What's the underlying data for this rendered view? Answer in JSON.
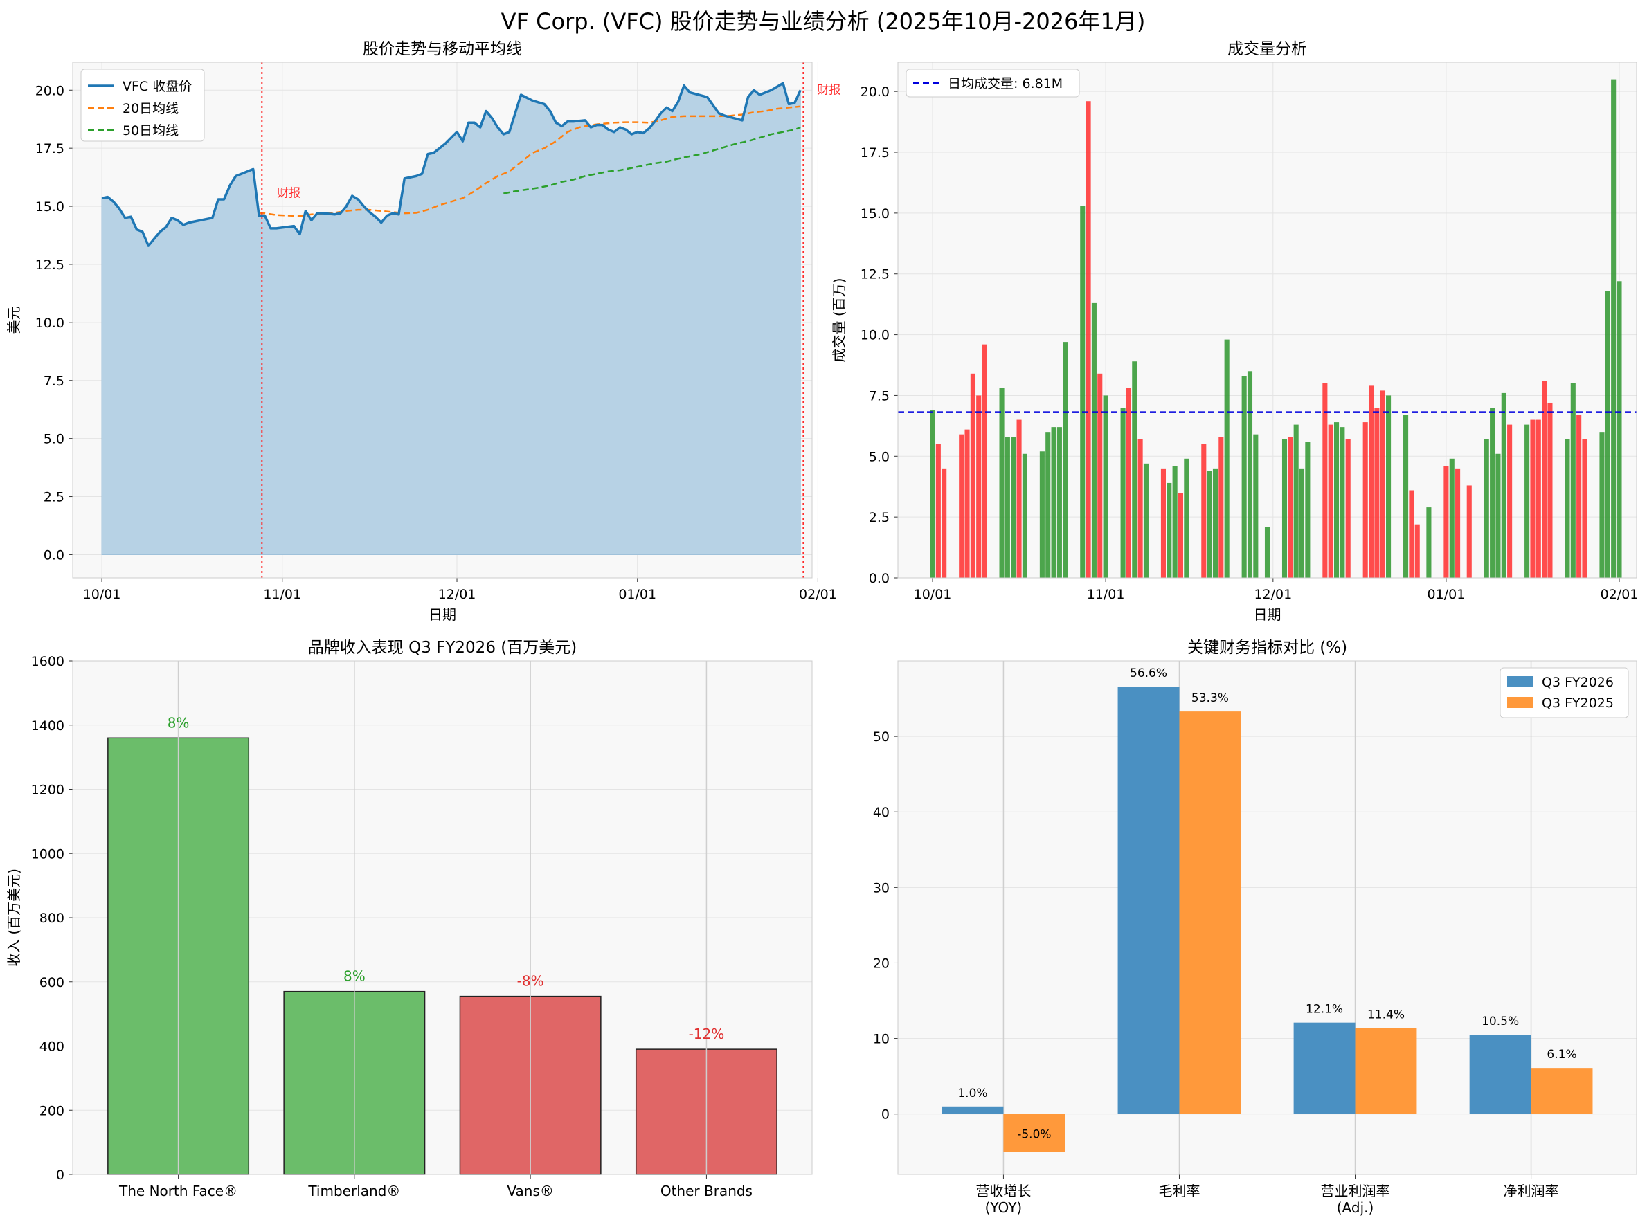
{
  "suptitle": "VF Corp. (VFC) 股价走势与业绩分析 (2025年10月-2026年1月)",
  "colors": {
    "face": "#f8f8f8",
    "grid": "#e4e4e4",
    "price_line": "#1f77b4",
    "area": "#b7d2e5",
    "ma20": "#ff7f0e",
    "ma50": "#2ca02c",
    "earnings": "#ff2a2a",
    "vol_up": "#339933",
    "vol_down": "#ff3333",
    "avg_line": "#0000dd",
    "pos_bar": "#6bbd6a",
    "neg_bar": "#e06666",
    "pos_text": "#2ca02c",
    "neg_text": "#e03030",
    "q26": "#4a90c2",
    "q25": "#ff993b"
  },
  "chart_data": [
    {
      "id": "price",
      "type": "line",
      "title": "股价走势与移动平均线",
      "xlabel": "日期",
      "ylabel": "美元",
      "ylim": [
        -1.0,
        21.2
      ],
      "xlim": [
        -5,
        122
      ],
      "yticks": [
        0.0,
        2.5,
        5.0,
        7.5,
        10.0,
        12.5,
        15.0,
        17.5,
        20.0
      ],
      "xticks": [
        {
          "day": 0,
          "label": "10/01"
        },
        {
          "day": 31,
          "label": "11/01"
        },
        {
          "day": 61,
          "label": "12/01"
        },
        {
          "day": 92,
          "label": "01/01"
        },
        {
          "day": 123,
          "label": "02/01"
        }
      ],
      "legend": {
        "position": "top-left",
        "labels": [
          "VFC 收盘价",
          "20日均线",
          "50日均线"
        ]
      },
      "earnings_label": "财报",
      "earnings_days": [
        27.5,
        120.5
      ],
      "close": [
        [
          0,
          15.35
        ],
        [
          1,
          15.4
        ],
        [
          2,
          15.2
        ],
        [
          3,
          14.9
        ],
        [
          4,
          14.5
        ],
        [
          5,
          14.55
        ],
        [
          6,
          14.0
        ],
        [
          7,
          13.9
        ],
        [
          8,
          13.3
        ],
        [
          9,
          13.6
        ],
        [
          10,
          13.9
        ],
        [
          11,
          14.1
        ],
        [
          12,
          14.5
        ],
        [
          13,
          14.4
        ],
        [
          14,
          14.2
        ],
        [
          15,
          14.3
        ],
        [
          17,
          14.4
        ],
        [
          19,
          14.5
        ],
        [
          20,
          15.3
        ],
        [
          21,
          15.3
        ],
        [
          22,
          15.9
        ],
        [
          23,
          16.3
        ],
        [
          24,
          16.4
        ],
        [
          25,
          16.5
        ],
        [
          26,
          16.6
        ],
        [
          27,
          14.6
        ],
        [
          28,
          14.6
        ],
        [
          29,
          14.05
        ],
        [
          30,
          14.05
        ],
        [
          33,
          14.15
        ],
        [
          34,
          13.8
        ],
        [
          35,
          14.8
        ],
        [
          36,
          14.4
        ],
        [
          37,
          14.7
        ],
        [
          38,
          14.7
        ],
        [
          40,
          14.65
        ],
        [
          41,
          14.7
        ],
        [
          42,
          15.0
        ],
        [
          43,
          15.45
        ],
        [
          44,
          15.3
        ],
        [
          45,
          15.0
        ],
        [
          46,
          14.75
        ],
        [
          47,
          14.55
        ],
        [
          48,
          14.3
        ],
        [
          49,
          14.6
        ],
        [
          50,
          14.7
        ],
        [
          51,
          14.65
        ],
        [
          52,
          16.2
        ],
        [
          53,
          16.25
        ],
        [
          54,
          16.3
        ],
        [
          55,
          16.4
        ],
        [
          56,
          17.25
        ],
        [
          57,
          17.3
        ],
        [
          58,
          17.5
        ],
        [
          59,
          17.7
        ],
        [
          60,
          17.95
        ],
        [
          61,
          18.2
        ],
        [
          62,
          17.8
        ],
        [
          63,
          18.6
        ],
        [
          64,
          18.6
        ],
        [
          65,
          18.4
        ],
        [
          66,
          19.1
        ],
        [
          67,
          18.8
        ],
        [
          68,
          18.4
        ],
        [
          69,
          18.1
        ],
        [
          70,
          18.2
        ],
        [
          71,
          19.0
        ],
        [
          72,
          19.8
        ],
        [
          74,
          19.55
        ],
        [
          76,
          19.4
        ],
        [
          77,
          19.1
        ],
        [
          78,
          18.6
        ],
        [
          79,
          18.45
        ],
        [
          80,
          18.65
        ],
        [
          81,
          18.65
        ],
        [
          83,
          18.7
        ],
        [
          84,
          18.4
        ],
        [
          85,
          18.5
        ],
        [
          86,
          18.5
        ],
        [
          87,
          18.3
        ],
        [
          88,
          18.2
        ],
        [
          89,
          18.4
        ],
        [
          90,
          18.3
        ],
        [
          91,
          18.1
        ],
        [
          92,
          18.2
        ],
        [
          93,
          18.15
        ],
        [
          94,
          18.35
        ],
        [
          95,
          18.65
        ],
        [
          96,
          19.0
        ],
        [
          97,
          19.25
        ],
        [
          98,
          19.1
        ],
        [
          99,
          19.5
        ],
        [
          100,
          20.2
        ],
        [
          101,
          19.9
        ],
        [
          104,
          19.7
        ],
        [
          105,
          19.35
        ],
        [
          106,
          19.0
        ],
        [
          107,
          18.9
        ],
        [
          110,
          18.7
        ],
        [
          111,
          19.7
        ],
        [
          112,
          20.0
        ],
        [
          113,
          19.8
        ],
        [
          115,
          20.0
        ],
        [
          116,
          20.15
        ],
        [
          117,
          20.3
        ],
        [
          118,
          19.4
        ],
        [
          119,
          19.45
        ],
        [
          120,
          20.0
        ]
      ],
      "ma20": [
        [
          27,
          14.7
        ],
        [
          28,
          14.7
        ],
        [
          30,
          14.62
        ],
        [
          32,
          14.6
        ],
        [
          34,
          14.58
        ],
        [
          36,
          14.65
        ],
        [
          38,
          14.68
        ],
        [
          40,
          14.72
        ],
        [
          42,
          14.8
        ],
        [
          44,
          14.85
        ],
        [
          46,
          14.85
        ],
        [
          48,
          14.8
        ],
        [
          50,
          14.75
        ],
        [
          52,
          14.7
        ],
        [
          54,
          14.72
        ],
        [
          56,
          14.85
        ],
        [
          58,
          15.05
        ],
        [
          60,
          15.2
        ],
        [
          62,
          15.35
        ],
        [
          64,
          15.65
        ],
        [
          66,
          16.0
        ],
        [
          68,
          16.3
        ],
        [
          70,
          16.5
        ],
        [
          72,
          16.9
        ],
        [
          74,
          17.3
        ],
        [
          76,
          17.5
        ],
        [
          78,
          17.8
        ],
        [
          80,
          18.2
        ],
        [
          82,
          18.4
        ],
        [
          84,
          18.5
        ],
        [
          86,
          18.55
        ],
        [
          88,
          18.6
        ],
        [
          90,
          18.62
        ],
        [
          92,
          18.62
        ],
        [
          94,
          18.6
        ],
        [
          96,
          18.7
        ],
        [
          98,
          18.85
        ],
        [
          100,
          18.88
        ],
        [
          102,
          18.88
        ],
        [
          104,
          18.88
        ],
        [
          106,
          18.88
        ],
        [
          108,
          18.9
        ],
        [
          110,
          18.95
        ],
        [
          112,
          19.05
        ],
        [
          114,
          19.1
        ],
        [
          116,
          19.2
        ],
        [
          118,
          19.25
        ],
        [
          120,
          19.3
        ]
      ],
      "ma50": [
        [
          69,
          15.55
        ],
        [
          71,
          15.65
        ],
        [
          73,
          15.72
        ],
        [
          75,
          15.8
        ],
        [
          77,
          15.9
        ],
        [
          79,
          16.05
        ],
        [
          81,
          16.15
        ],
        [
          83,
          16.3
        ],
        [
          85,
          16.4
        ],
        [
          87,
          16.5
        ],
        [
          89,
          16.55
        ],
        [
          91,
          16.65
        ],
        [
          93,
          16.75
        ],
        [
          95,
          16.85
        ],
        [
          97,
          16.92
        ],
        [
          99,
          17.05
        ],
        [
          101,
          17.15
        ],
        [
          103,
          17.25
        ],
        [
          105,
          17.4
        ],
        [
          107,
          17.55
        ],
        [
          109,
          17.7
        ],
        [
          111,
          17.8
        ],
        [
          113,
          17.95
        ],
        [
          115,
          18.1
        ],
        [
          117,
          18.2
        ],
        [
          119,
          18.3
        ],
        [
          120,
          18.4
        ]
      ]
    },
    {
      "id": "volume",
      "type": "bar",
      "title": "成交量分析",
      "xlabel": "日期",
      "ylabel": "成交量 (百万)",
      "ylim": [
        0,
        21.2
      ],
      "xlim": [
        -6,
        122
      ],
      "yticks": [
        0.0,
        2.5,
        5.0,
        7.5,
        10.0,
        12.5,
        15.0,
        17.5,
        20.0
      ],
      "xticks": [
        {
          "day": 0,
          "label": "10/01"
        },
        {
          "day": 30,
          "label": "11/01"
        },
        {
          "day": 59,
          "label": "12/01"
        },
        {
          "day": 89,
          "label": "01/01"
        },
        {
          "day": 119,
          "label": "02/01"
        }
      ],
      "avg_volume": 6.81,
      "legend_label": "日均成交量: 6.81M",
      "bars": [
        [
          0,
          6.9,
          "up"
        ],
        [
          1,
          5.5,
          "down"
        ],
        [
          2,
          4.5,
          "down"
        ],
        [
          5,
          5.9,
          "down"
        ],
        [
          6,
          6.1,
          "down"
        ],
        [
          7,
          8.4,
          "down"
        ],
        [
          8,
          7.5,
          "down"
        ],
        [
          9,
          9.6,
          "down"
        ],
        [
          12,
          7.8,
          "up"
        ],
        [
          13,
          5.8,
          "up"
        ],
        [
          14,
          5.8,
          "up"
        ],
        [
          15,
          6.5,
          "down"
        ],
        [
          16,
          5.1,
          "up"
        ],
        [
          19,
          5.2,
          "up"
        ],
        [
          20,
          6.0,
          "up"
        ],
        [
          21,
          6.2,
          "up"
        ],
        [
          22,
          6.2,
          "up"
        ],
        [
          23,
          9.7,
          "up"
        ],
        [
          26,
          15.3,
          "up"
        ],
        [
          27,
          19.6,
          "down"
        ],
        [
          28,
          11.3,
          "up"
        ],
        [
          29,
          8.4,
          "down"
        ],
        [
          30,
          7.5,
          "up"
        ],
        [
          33,
          7.0,
          "up"
        ],
        [
          34,
          7.8,
          "down"
        ],
        [
          35,
          8.9,
          "up"
        ],
        [
          36,
          5.7,
          "down"
        ],
        [
          37,
          4.7,
          "up"
        ],
        [
          40,
          4.5,
          "down"
        ],
        [
          41,
          3.9,
          "up"
        ],
        [
          42,
          4.6,
          "up"
        ],
        [
          43,
          3.5,
          "down"
        ],
        [
          44,
          4.9,
          "up"
        ],
        [
          47,
          5.5,
          "down"
        ],
        [
          48,
          4.4,
          "up"
        ],
        [
          49,
          4.5,
          "up"
        ],
        [
          50,
          5.8,
          "down"
        ],
        [
          51,
          9.8,
          "up"
        ],
        [
          54,
          8.3,
          "up"
        ],
        [
          55,
          8.5,
          "up"
        ],
        [
          56,
          5.9,
          "up"
        ],
        [
          58,
          2.1,
          "up"
        ],
        [
          61,
          5.7,
          "up"
        ],
        [
          62,
          5.8,
          "down"
        ],
        [
          63,
          6.3,
          "up"
        ],
        [
          64,
          4.5,
          "up"
        ],
        [
          65,
          5.6,
          "up"
        ],
        [
          68,
          8.0,
          "down"
        ],
        [
          69,
          6.3,
          "down"
        ],
        [
          70,
          6.4,
          "up"
        ],
        [
          71,
          6.2,
          "up"
        ],
        [
          72,
          5.7,
          "down"
        ],
        [
          75,
          6.4,
          "down"
        ],
        [
          76,
          7.9,
          "down"
        ],
        [
          77,
          7.0,
          "down"
        ],
        [
          78,
          7.7,
          "down"
        ],
        [
          79,
          7.5,
          "up"
        ],
        [
          82,
          6.7,
          "up"
        ],
        [
          83,
          3.6,
          "down"
        ],
        [
          84,
          2.2,
          "down"
        ],
        [
          86,
          2.9,
          "up"
        ],
        [
          89,
          4.6,
          "down"
        ],
        [
          90,
          4.9,
          "up"
        ],
        [
          91,
          4.5,
          "down"
        ],
        [
          93,
          3.8,
          "down"
        ],
        [
          96,
          5.7,
          "up"
        ],
        [
          97,
          7.0,
          "up"
        ],
        [
          98,
          5.1,
          "up"
        ],
        [
          99,
          7.6,
          "up"
        ],
        [
          100,
          6.3,
          "down"
        ],
        [
          103,
          6.3,
          "up"
        ],
        [
          104,
          6.5,
          "down"
        ],
        [
          105,
          6.5,
          "down"
        ],
        [
          106,
          8.1,
          "down"
        ],
        [
          107,
          7.2,
          "down"
        ],
        [
          110,
          5.7,
          "up"
        ],
        [
          111,
          8.0,
          "up"
        ],
        [
          112,
          6.7,
          "down"
        ],
        [
          113,
          5.7,
          "down"
        ],
        [
          116,
          6.0,
          "up"
        ],
        [
          117,
          11.8,
          "up"
        ],
        [
          118,
          20.5,
          "up"
        ],
        [
          119,
          12.2,
          "up"
        ]
      ]
    },
    {
      "id": "brands",
      "type": "bar",
      "title": "品牌收入表现 Q3 FY2026 (百万美元)",
      "xlabel": "",
      "ylabel": "收入 (百万美元)",
      "ylim": [
        0,
        1600
      ],
      "yticks": [
        0,
        200,
        400,
        600,
        800,
        1000,
        1200,
        1400,
        1600
      ],
      "categories": [
        "The North Face®",
        "Timberland®",
        "Vans®",
        "Other Brands"
      ],
      "values": [
        1360,
        570,
        555,
        390
      ],
      "growth_labels": [
        "8%",
        "8%",
        "-8%",
        "-12%"
      ],
      "growth": [
        8,
        8,
        -8,
        -12
      ]
    },
    {
      "id": "metrics",
      "type": "bar",
      "title": "关键财务指标对比 (%)",
      "xlabel": "",
      "ylabel": "",
      "ylim": [
        -8,
        60
      ],
      "yticks": [
        0,
        10,
        20,
        30,
        40,
        50
      ],
      "categories": [
        [
          "营收增长",
          "(YOY)"
        ],
        [
          "毛利率"
        ],
        [
          "营业利润率",
          "(Adj.)"
        ],
        [
          "净利润率"
        ]
      ],
      "legend": {
        "position": "top-right",
        "labels": [
          "Q3 FY2026",
          "Q3 FY2025"
        ]
      },
      "series": [
        {
          "name": "Q3 FY2026",
          "values": [
            1.0,
            56.6,
            12.1,
            10.5
          ],
          "labels": [
            "1.0%",
            "56.6%",
            "12.1%",
            "10.5%"
          ]
        },
        {
          "name": "Q3 FY2025",
          "values": [
            -5.0,
            53.3,
            11.4,
            6.1
          ],
          "labels": [
            "-5.0%",
            "53.3%",
            "11.4%",
            "6.1%"
          ]
        }
      ]
    }
  ]
}
